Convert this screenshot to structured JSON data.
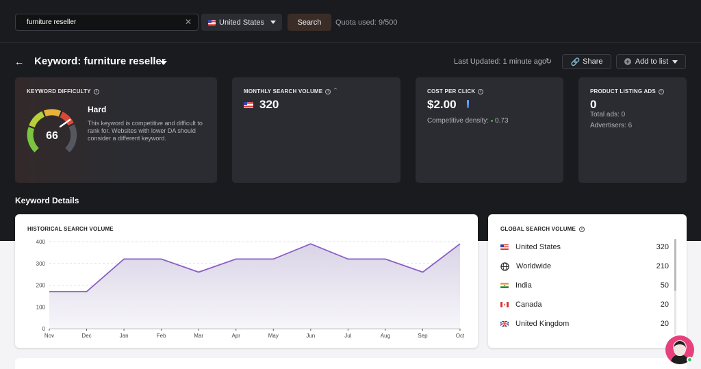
{
  "search": {
    "query": "furniture reseller",
    "country": "United States",
    "button_label": "Search",
    "quota": "Quota used: 9/500"
  },
  "header": {
    "title": "Keyword: furniture reseller",
    "last_updated": "Last Updated: 1 minute ago",
    "share_label": "Share",
    "add_to_list_label": "Add to list"
  },
  "cards": {
    "keyword_difficulty": {
      "title": "KEYWORD DIFFICULTY",
      "value": "66",
      "level": "Hard",
      "description": "This keyword is competitive and difficult to rank for. Websites with lower DA should consider a different keyword."
    },
    "monthly_search_volume": {
      "title": "MONTHLY SEARCH VOLUME",
      "value": "320"
    },
    "cost_per_click": {
      "title": "COST PER CLICK",
      "value": "$2.00",
      "density_label": "Competitive density:",
      "density_value": "0.73"
    },
    "product_listing_ads": {
      "title": "PRODUCT LISTING ADS",
      "value": "0",
      "total_ads": "Total ads: 0",
      "advertisers": "Advertisers: 6"
    }
  },
  "section_title": "Keyword Details",
  "historical": {
    "title": "HISTORICAL SEARCH VOLUME"
  },
  "chart_data": {
    "type": "area",
    "title": "HISTORICAL SEARCH VOLUME",
    "categories": [
      "Nov",
      "Dec",
      "Jan",
      "Feb",
      "Mar",
      "Apr",
      "May",
      "Jun",
      "Jul",
      "Aug",
      "Sep",
      "Oct"
    ],
    "values": [
      170,
      170,
      320,
      320,
      260,
      320,
      320,
      390,
      320,
      320,
      260,
      390
    ],
    "yticks": [
      0,
      100,
      200,
      300,
      400
    ],
    "ylim": [
      0,
      400
    ],
    "line_color": "#8b5cc7",
    "grid": true
  },
  "global": {
    "title": "GLOBAL SEARCH VOLUME",
    "rows": [
      {
        "name": "United States",
        "count": "320",
        "flag": "us"
      },
      {
        "name": "Worldwide",
        "count": "210",
        "flag": "globe"
      },
      {
        "name": "India",
        "count": "50",
        "flag": "in"
      },
      {
        "name": "Canada",
        "count": "20",
        "flag": "ca"
      },
      {
        "name": "United Kingdom",
        "count": "20",
        "flag": "uk"
      }
    ]
  },
  "colors": {
    "accent_line": "#8b5cc7",
    "difficulty_hard": "#d9493a",
    "online": "#3cbf5a"
  }
}
